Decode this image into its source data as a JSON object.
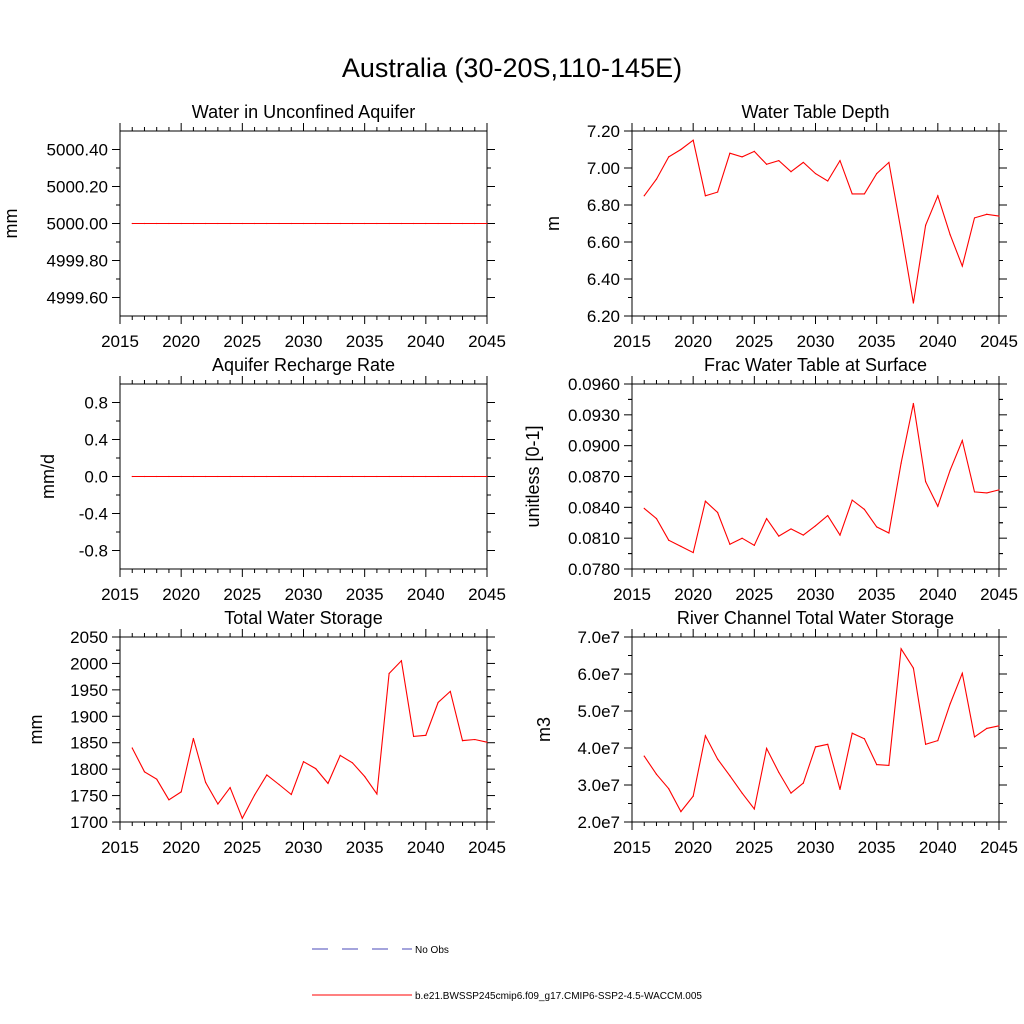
{
  "figure": {
    "title": "Australia (30-20S,110-145E)",
    "legend": [
      {
        "label": "No Obs",
        "color": "#4a4ab8",
        "dash": true
      },
      {
        "label": "b.e21.BWSSP245cmip6.f09_g17.CMIP6-SSP2-4.5-WACCM.005",
        "color": "#ff0000",
        "dash": false
      }
    ]
  },
  "chart_data": [
    {
      "type": "line",
      "title": "Water in Unconfined Aquifer",
      "ylabel": "mm",
      "xlim": [
        2015,
        2045
      ],
      "ylim": [
        4999.5,
        5000.5
      ],
      "xticks": [
        "2015",
        "2020",
        "2025",
        "2030",
        "2035",
        "2040",
        "2045"
      ],
      "yticks": [
        "4999.60",
        "4999.80",
        "5000.00",
        "5000.20",
        "5000.40"
      ],
      "ytick_values": [
        4999.6,
        4999.8,
        5000.0,
        5000.2,
        5000.4
      ],
      "series": [
        {
          "color": "#ff0000",
          "x": [
            2016,
            2017,
            2018,
            2019,
            2020,
            2021,
            2022,
            2023,
            2024,
            2025,
            2026,
            2027,
            2028,
            2029,
            2030,
            2031,
            2032,
            2033,
            2034,
            2035,
            2036,
            2037,
            2038,
            2039,
            2040,
            2041,
            2042,
            2043,
            2044,
            2045
          ],
          "y": [
            5000,
            5000,
            5000,
            5000,
            5000,
            5000,
            5000,
            5000,
            5000,
            5000,
            5000,
            5000,
            5000,
            5000,
            5000,
            5000,
            5000,
            5000,
            5000,
            5000,
            5000,
            5000,
            5000,
            5000,
            5000,
            5000,
            5000,
            5000,
            5000,
            5000
          ]
        }
      ]
    },
    {
      "type": "line",
      "title": "Water Table Depth",
      "ylabel": "m",
      "xlim": [
        2015,
        2045
      ],
      "ylim": [
        6.2,
        7.2
      ],
      "xticks": [
        "2015",
        "2020",
        "2025",
        "2030",
        "2035",
        "2040",
        "2045"
      ],
      "yticks": [
        "6.20",
        "6.40",
        "6.60",
        "6.80",
        "7.00",
        "7.20"
      ],
      "ytick_values": [
        6.2,
        6.4,
        6.6,
        6.8,
        7.0,
        7.2
      ],
      "series": [
        {
          "color": "#ff0000",
          "x": [
            2016,
            2017,
            2018,
            2019,
            2020,
            2021,
            2022,
            2023,
            2024,
            2025,
            2026,
            2027,
            2028,
            2029,
            2030,
            2031,
            2032,
            2033,
            2034,
            2035,
            2036,
            2037,
            2038,
            2039,
            2040,
            2041,
            2042,
            2043,
            2044,
            2045
          ],
          "y": [
            6.85,
            6.94,
            7.06,
            7.1,
            7.15,
            6.85,
            6.87,
            7.08,
            7.06,
            7.09,
            7.02,
            7.04,
            6.98,
            7.03,
            6.97,
            6.93,
            7.04,
            6.86,
            6.86,
            6.97,
            7.03,
            6.66,
            6.27,
            6.69,
            6.85,
            6.64,
            6.47,
            6.73,
            6.75,
            6.74
          ]
        }
      ]
    },
    {
      "type": "line",
      "title": "Aquifer Recharge Rate",
      "ylabel": "mm/d",
      "xlim": [
        2015,
        2045
      ],
      "ylim": [
        -1.0,
        1.0
      ],
      "xticks": [
        "2015",
        "2020",
        "2025",
        "2030",
        "2035",
        "2040",
        "2045"
      ],
      "yticks": [
        "-0.8",
        "-0.4",
        "0.0",
        "0.4",
        "0.8"
      ],
      "ytick_values": [
        -0.8,
        -0.4,
        0.0,
        0.4,
        0.8
      ],
      "series": [
        {
          "color": "#ff0000",
          "x": [
            2016,
            2017,
            2018,
            2019,
            2020,
            2021,
            2022,
            2023,
            2024,
            2025,
            2026,
            2027,
            2028,
            2029,
            2030,
            2031,
            2032,
            2033,
            2034,
            2035,
            2036,
            2037,
            2038,
            2039,
            2040,
            2041,
            2042,
            2043,
            2044,
            2045
          ],
          "y": [
            0,
            0,
            0,
            0,
            0,
            0,
            0,
            0,
            0,
            0,
            0,
            0,
            0,
            0,
            0,
            0,
            0,
            0,
            0,
            0,
            0,
            0,
            0,
            0,
            0,
            0,
            0,
            0,
            0,
            0
          ]
        }
      ]
    },
    {
      "type": "line",
      "title": "Frac Water Table at Surface",
      "ylabel": "unitless [0-1]",
      "xlim": [
        2015,
        2045
      ],
      "ylim": [
        0.078,
        0.096
      ],
      "xticks": [
        "2015",
        "2020",
        "2025",
        "2030",
        "2035",
        "2040",
        "2045"
      ],
      "yticks": [
        "0.0780",
        "0.0810",
        "0.0840",
        "0.0870",
        "0.0900",
        "0.0930",
        "0.0960"
      ],
      "ytick_values": [
        0.078,
        0.081,
        0.084,
        0.087,
        0.09,
        0.093,
        0.096
      ],
      "series": [
        {
          "color": "#ff0000",
          "x": [
            2016,
            2017,
            2018,
            2019,
            2020,
            2021,
            2022,
            2023,
            2024,
            2025,
            2026,
            2027,
            2028,
            2029,
            2030,
            2031,
            2032,
            2033,
            2034,
            2035,
            2036,
            2037,
            2038,
            2039,
            2040,
            2041,
            2042,
            2043,
            2044,
            2045
          ],
          "y": [
            0.0839,
            0.0829,
            0.0808,
            0.0802,
            0.0796,
            0.0846,
            0.0835,
            0.0804,
            0.081,
            0.0803,
            0.0829,
            0.0812,
            0.0819,
            0.0813,
            0.0822,
            0.0832,
            0.0813,
            0.0847,
            0.0838,
            0.0821,
            0.0815,
            0.0883,
            0.0941,
            0.0865,
            0.0841,
            0.0876,
            0.0905,
            0.0855,
            0.0854,
            0.0857
          ]
        }
      ]
    },
    {
      "type": "line",
      "title": "Total Water Storage",
      "ylabel": "mm",
      "xlim": [
        2015,
        2045
      ],
      "ylim": [
        1700,
        2050
      ],
      "xticks": [
        "2015",
        "2020",
        "2025",
        "2030",
        "2035",
        "2040",
        "2045"
      ],
      "yticks": [
        "1700",
        "1750",
        "1800",
        "1850",
        "1900",
        "1950",
        "2000",
        "2050"
      ],
      "ytick_values": [
        1700,
        1750,
        1800,
        1850,
        1900,
        1950,
        2000,
        2050
      ],
      "series": [
        {
          "color": "#ff0000",
          "x": [
            2016,
            2017,
            2018,
            2019,
            2020,
            2021,
            2022,
            2023,
            2024,
            2025,
            2026,
            2027,
            2028,
            2029,
            2030,
            2031,
            2032,
            2033,
            2034,
            2035,
            2036,
            2037,
            2038,
            2039,
            2040,
            2041,
            2042,
            2043,
            2044,
            2045
          ],
          "y": [
            1840,
            1795,
            1781,
            1742,
            1757,
            1858,
            1775,
            1734,
            1765,
            1707,
            1751,
            1789,
            1771,
            1752,
            1814,
            1801,
            1773,
            1826,
            1812,
            1786,
            1753,
            1981,
            2005,
            1862,
            1864,
            1926,
            1947,
            1854,
            1856,
            1851
          ]
        }
      ]
    },
    {
      "type": "line",
      "title": "River Channel Total Water Storage",
      "ylabel": "m3",
      "xlim": [
        2015,
        2045
      ],
      "ylim": [
        20000000,
        70000000
      ],
      "xticks": [
        "2015",
        "2020",
        "2025",
        "2030",
        "2035",
        "2040",
        "2045"
      ],
      "yticks": [
        "2.0e7",
        "3.0e7",
        "4.0e7",
        "5.0e7",
        "6.0e7",
        "7.0e7"
      ],
      "ytick_values": [
        20000000,
        30000000,
        40000000,
        50000000,
        60000000,
        70000000
      ],
      "series": [
        {
          "color": "#ff0000",
          "x": [
            2016,
            2017,
            2018,
            2019,
            2020,
            2021,
            2022,
            2023,
            2024,
            2025,
            2026,
            2027,
            2028,
            2029,
            2030,
            2031,
            2032,
            2033,
            2034,
            2035,
            2036,
            2037,
            2038,
            2039,
            2040,
            2041,
            2042,
            2043,
            2044,
            2045
          ],
          "y": [
            37800000,
            32900000,
            29000000,
            22800000,
            27000000,
            43300000,
            37000000,
            32500000,
            27800000,
            23500000,
            39900000,
            33400000,
            27800000,
            30500000,
            40300000,
            41000000,
            28800000,
            44000000,
            42500000,
            35500000,
            35300000,
            66800000,
            61600000,
            41000000,
            42000000,
            51900000,
            60200000,
            43000000,
            45300000,
            46000000
          ]
        }
      ]
    }
  ]
}
